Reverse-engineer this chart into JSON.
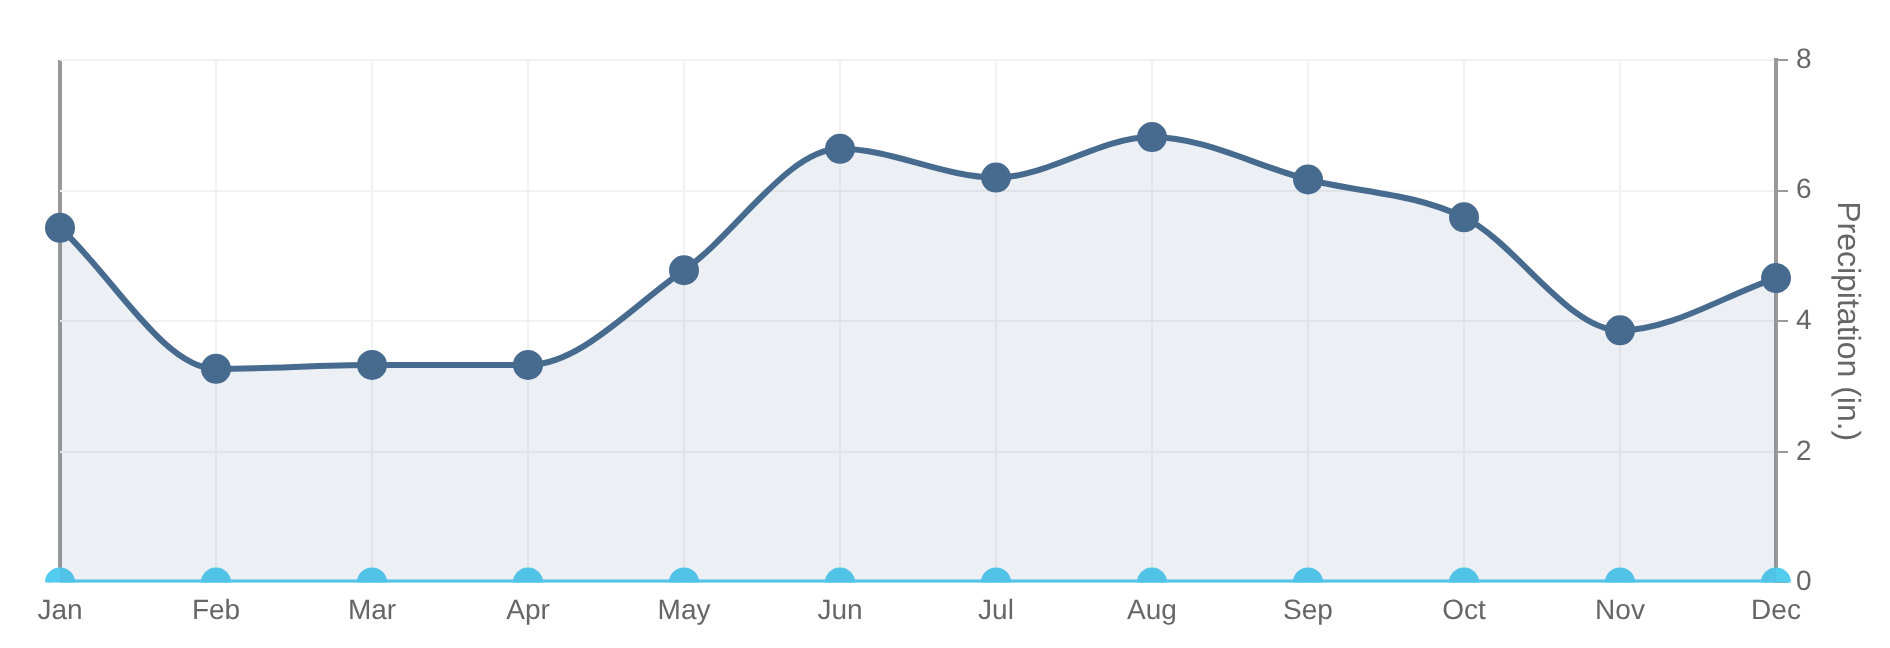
{
  "chart_data": {
    "type": "line",
    "ylabel": "Precipitation (in.)",
    "categories": [
      "Jan",
      "Feb",
      "Mar",
      "Apr",
      "May",
      "Jun",
      "Jul",
      "Aug",
      "Sep",
      "Oct",
      "Nov",
      "Dec"
    ],
    "series": [
      {
        "type": "area",
        "color": "#476a8f",
        "values": [
          5.43,
          3.27,
          3.33,
          3.33,
          4.78,
          6.64,
          6.2,
          6.82,
          6.17,
          5.59,
          3.86,
          4.66
        ]
      },
      {
        "type": "line",
        "color": "#52cdf0",
        "values": [
          0,
          0,
          0,
          0,
          0,
          0,
          0,
          0,
          0,
          0,
          0,
          0
        ]
      }
    ],
    "ylim": [
      0,
      8
    ],
    "yticks": [
      0,
      2,
      4,
      6,
      8
    ],
    "grid": true,
    "legend": false,
    "marker": "circle",
    "line_style": "solid"
  }
}
